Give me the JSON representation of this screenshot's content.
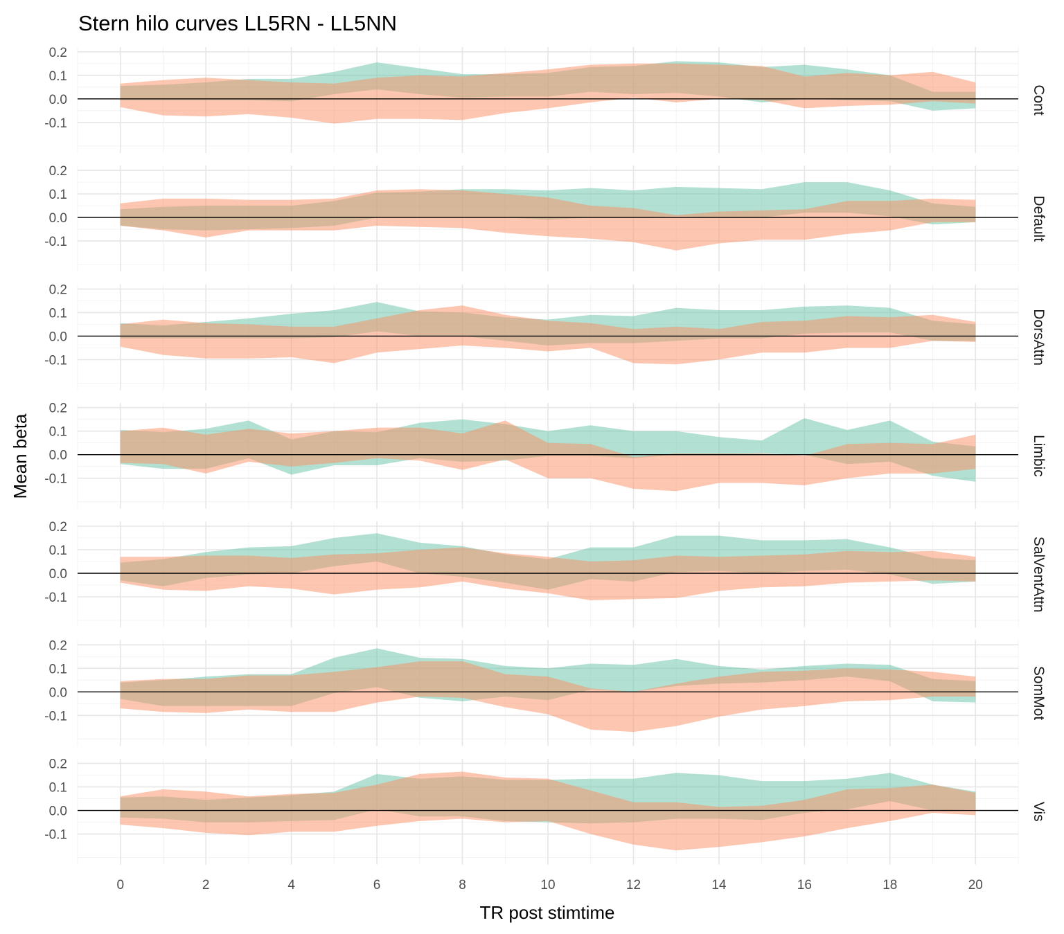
{
  "chart_data": {
    "type": "area",
    "title": "Stern hilo curves LL5RN - LL5NN",
    "xlabel": "TR post stimtime",
    "ylabel": "Mean beta",
    "x": [
      0,
      1,
      2,
      3,
      4,
      5,
      6,
      7,
      8,
      9,
      10,
      11,
      12,
      13,
      14,
      15,
      16,
      17,
      18,
      19,
      20
    ],
    "xlim": [
      -1,
      21
    ],
    "xticks": [
      0,
      2,
      4,
      6,
      8,
      10,
      12,
      14,
      16,
      18,
      20
    ],
    "ylim": [
      -0.23,
      0.22
    ],
    "yticks": [
      -0.1,
      0.0,
      0.1,
      0.2
    ],
    "ytick_labels": [
      "-0.1",
      "0.0",
      "0.1",
      "0.2"
    ],
    "hline_y": 0,
    "grid": true,
    "legend": "none",
    "series_colors": {
      "teal": "#66c2a5",
      "orange": "#fc8d62"
    },
    "series_opacity": 0.5,
    "panels": [
      {
        "label": "Cont",
        "teal": {
          "upper": [
            0.055,
            0.06,
            0.07,
            0.085,
            0.085,
            0.115,
            0.155,
            0.13,
            0.105,
            0.105,
            0.11,
            0.135,
            0.14,
            0.16,
            0.155,
            0.135,
            0.145,
            0.125,
            0.1,
            0.03,
            0.03
          ],
          "lower": [
            -0.005,
            -0.005,
            -0.005,
            -0.005,
            -0.01,
            0.02,
            0.04,
            0.02,
            0.005,
            0.01,
            0.01,
            0.03,
            0.02,
            0.025,
            0.01,
            -0.015,
            0.0,
            -0.005,
            -0.01,
            -0.05,
            -0.04
          ]
        },
        "orange": {
          "upper": [
            0.065,
            0.08,
            0.09,
            0.08,
            0.07,
            0.065,
            0.09,
            0.1,
            0.095,
            0.11,
            0.125,
            0.145,
            0.15,
            0.15,
            0.145,
            0.14,
            0.095,
            0.11,
            0.1,
            0.115,
            0.07
          ],
          "lower": [
            -0.035,
            -0.07,
            -0.075,
            -0.065,
            -0.08,
            -0.105,
            -0.085,
            -0.085,
            -0.09,
            -0.06,
            -0.04,
            -0.015,
            0.005,
            -0.015,
            0.0,
            -0.005,
            -0.04,
            -0.03,
            -0.025,
            -0.01,
            -0.02
          ]
        }
      },
      {
        "label": "Default",
        "teal": {
          "upper": [
            0.035,
            0.045,
            0.05,
            0.05,
            0.05,
            0.07,
            0.105,
            0.11,
            0.12,
            0.12,
            0.115,
            0.125,
            0.115,
            0.13,
            0.125,
            0.12,
            0.15,
            0.15,
            0.115,
            0.06,
            0.045
          ],
          "lower": [
            -0.035,
            -0.05,
            -0.055,
            -0.05,
            -0.045,
            -0.035,
            0.0,
            0.0,
            0.0,
            0.0,
            -0.01,
            0.0,
            0.0,
            0.005,
            0.0,
            0.0,
            0.02,
            0.02,
            0.005,
            -0.03,
            -0.02
          ]
        },
        "orange": {
          "upper": [
            0.06,
            0.08,
            0.08,
            0.075,
            0.075,
            0.08,
            0.115,
            0.12,
            0.115,
            0.1,
            0.085,
            0.05,
            0.04,
            0.01,
            0.025,
            0.03,
            0.035,
            0.07,
            0.07,
            0.08,
            0.075
          ],
          "lower": [
            -0.035,
            -0.055,
            -0.085,
            -0.055,
            -0.055,
            -0.055,
            -0.035,
            -0.04,
            -0.045,
            -0.065,
            -0.08,
            -0.09,
            -0.105,
            -0.14,
            -0.11,
            -0.095,
            -0.095,
            -0.07,
            -0.055,
            -0.02,
            -0.02
          ]
        }
      },
      {
        "label": "DorsAttn",
        "teal": {
          "upper": [
            0.055,
            0.045,
            0.06,
            0.075,
            0.095,
            0.11,
            0.145,
            0.105,
            0.1,
            0.08,
            0.07,
            0.09,
            0.085,
            0.12,
            0.11,
            0.11,
            0.125,
            0.13,
            0.12,
            0.065,
            0.05
          ],
          "lower": [
            -0.01,
            -0.01,
            -0.01,
            -0.01,
            -0.01,
            -0.005,
            0.02,
            0.0,
            0.0,
            -0.02,
            -0.04,
            -0.03,
            -0.03,
            -0.02,
            -0.01,
            -0.01,
            0.01,
            0.015,
            0.015,
            -0.02,
            -0.02
          ]
        },
        "orange": {
          "upper": [
            0.05,
            0.07,
            0.055,
            0.05,
            0.04,
            0.04,
            0.075,
            0.11,
            0.13,
            0.09,
            0.065,
            0.055,
            0.03,
            0.04,
            0.03,
            0.06,
            0.065,
            0.085,
            0.08,
            0.09,
            0.06
          ],
          "lower": [
            -0.045,
            -0.08,
            -0.095,
            -0.095,
            -0.09,
            -0.115,
            -0.07,
            -0.055,
            -0.04,
            -0.05,
            -0.065,
            -0.05,
            -0.115,
            -0.12,
            -0.1,
            -0.07,
            -0.07,
            -0.05,
            -0.05,
            -0.02,
            -0.025
          ]
        }
      },
      {
        "label": "Limbic",
        "teal": {
          "upper": [
            0.105,
            0.095,
            0.11,
            0.145,
            0.065,
            0.1,
            0.095,
            0.135,
            0.15,
            0.13,
            0.1,
            0.125,
            0.1,
            0.1,
            0.075,
            0.06,
            0.155,
            0.105,
            0.145,
            0.055,
            0.035
          ],
          "lower": [
            -0.04,
            -0.06,
            -0.06,
            -0.015,
            -0.085,
            -0.045,
            -0.045,
            -0.015,
            -0.03,
            -0.025,
            -0.005,
            -0.005,
            -0.015,
            0.0,
            0.0,
            0.005,
            0.0,
            -0.04,
            -0.03,
            -0.09,
            -0.115
          ]
        },
        "orange": {
          "upper": [
            0.1,
            0.115,
            0.085,
            0.11,
            0.09,
            0.1,
            0.115,
            0.115,
            0.09,
            0.145,
            0.05,
            0.045,
            -0.01,
            0.005,
            0.005,
            0.005,
            -0.005,
            0.045,
            0.05,
            0.045,
            0.085
          ],
          "lower": [
            -0.035,
            -0.04,
            -0.08,
            -0.03,
            -0.05,
            -0.035,
            -0.015,
            -0.025,
            -0.065,
            -0.02,
            -0.1,
            -0.1,
            -0.145,
            -0.155,
            -0.12,
            -0.12,
            -0.13,
            -0.1,
            -0.08,
            -0.08,
            -0.06
          ]
        }
      },
      {
        "label": "SalVentAttn",
        "teal": {
          "upper": [
            0.045,
            0.06,
            0.09,
            0.11,
            0.115,
            0.15,
            0.17,
            0.13,
            0.115,
            0.08,
            0.06,
            0.11,
            0.11,
            0.16,
            0.16,
            0.14,
            0.14,
            0.145,
            0.11,
            0.065,
            0.055
          ],
          "lower": [
            -0.03,
            -0.055,
            -0.02,
            -0.005,
            0.0,
            0.03,
            0.05,
            0.0,
            -0.015,
            -0.04,
            -0.07,
            -0.025,
            -0.035,
            0.005,
            0.01,
            0.0,
            0.01,
            0.015,
            -0.005,
            -0.045,
            -0.035
          ]
        },
        "orange": {
          "upper": [
            0.07,
            0.07,
            0.075,
            0.075,
            0.065,
            0.08,
            0.085,
            0.1,
            0.11,
            0.085,
            0.07,
            0.05,
            0.055,
            0.075,
            0.07,
            0.075,
            0.08,
            0.095,
            0.09,
            0.095,
            0.07
          ],
          "lower": [
            -0.04,
            -0.07,
            -0.075,
            -0.055,
            -0.065,
            -0.09,
            -0.07,
            -0.06,
            -0.035,
            -0.065,
            -0.085,
            -0.115,
            -0.11,
            -0.105,
            -0.075,
            -0.06,
            -0.055,
            -0.04,
            -0.035,
            -0.03,
            -0.035
          ]
        }
      },
      {
        "label": "SomMot",
        "teal": {
          "upper": [
            0.04,
            0.05,
            0.065,
            0.075,
            0.075,
            0.145,
            0.185,
            0.145,
            0.14,
            0.11,
            0.1,
            0.12,
            0.115,
            0.14,
            0.11,
            0.095,
            0.11,
            0.12,
            0.115,
            0.055,
            0.045
          ],
          "lower": [
            -0.03,
            -0.06,
            -0.06,
            -0.06,
            -0.06,
            -0.005,
            0.02,
            -0.025,
            -0.04,
            -0.02,
            -0.035,
            0.01,
            0.0,
            0.025,
            0.035,
            0.04,
            0.05,
            0.065,
            0.045,
            -0.04,
            -0.045
          ]
        },
        "orange": {
          "upper": [
            0.045,
            0.055,
            0.055,
            0.07,
            0.07,
            0.085,
            0.105,
            0.13,
            0.13,
            0.075,
            0.065,
            0.015,
            0.0,
            0.035,
            0.065,
            0.085,
            0.09,
            0.1,
            0.095,
            0.085,
            0.065
          ],
          "lower": [
            -0.07,
            -0.085,
            -0.09,
            -0.075,
            -0.085,
            -0.085,
            -0.045,
            -0.02,
            -0.025,
            -0.065,
            -0.095,
            -0.16,
            -0.17,
            -0.145,
            -0.105,
            -0.075,
            -0.06,
            -0.04,
            -0.035,
            -0.02,
            -0.02
          ]
        }
      },
      {
        "label": "Vis",
        "teal": {
          "upper": [
            0.055,
            0.06,
            0.045,
            0.055,
            0.065,
            0.08,
            0.155,
            0.135,
            0.145,
            0.13,
            0.13,
            0.135,
            0.135,
            0.16,
            0.15,
            0.125,
            0.125,
            0.135,
            0.16,
            0.11,
            0.08
          ],
          "lower": [
            -0.03,
            -0.035,
            -0.05,
            -0.05,
            -0.045,
            -0.04,
            0.005,
            -0.025,
            -0.025,
            -0.045,
            -0.05,
            -0.055,
            -0.05,
            -0.035,
            -0.035,
            -0.04,
            -0.01,
            0.005,
            0.04,
            0.0,
            0.005
          ]
        },
        "orange": {
          "upper": [
            0.06,
            0.09,
            0.08,
            0.06,
            0.07,
            0.075,
            0.11,
            0.155,
            0.165,
            0.14,
            0.135,
            0.085,
            0.035,
            0.035,
            0.015,
            0.02,
            0.045,
            0.09,
            0.095,
            0.11,
            0.075
          ],
          "lower": [
            -0.06,
            -0.075,
            -0.095,
            -0.105,
            -0.09,
            -0.09,
            -0.065,
            -0.045,
            -0.035,
            -0.05,
            -0.045,
            -0.1,
            -0.145,
            -0.17,
            -0.155,
            -0.135,
            -0.11,
            -0.075,
            -0.045,
            -0.01,
            -0.02
          ]
        }
      }
    ]
  }
}
